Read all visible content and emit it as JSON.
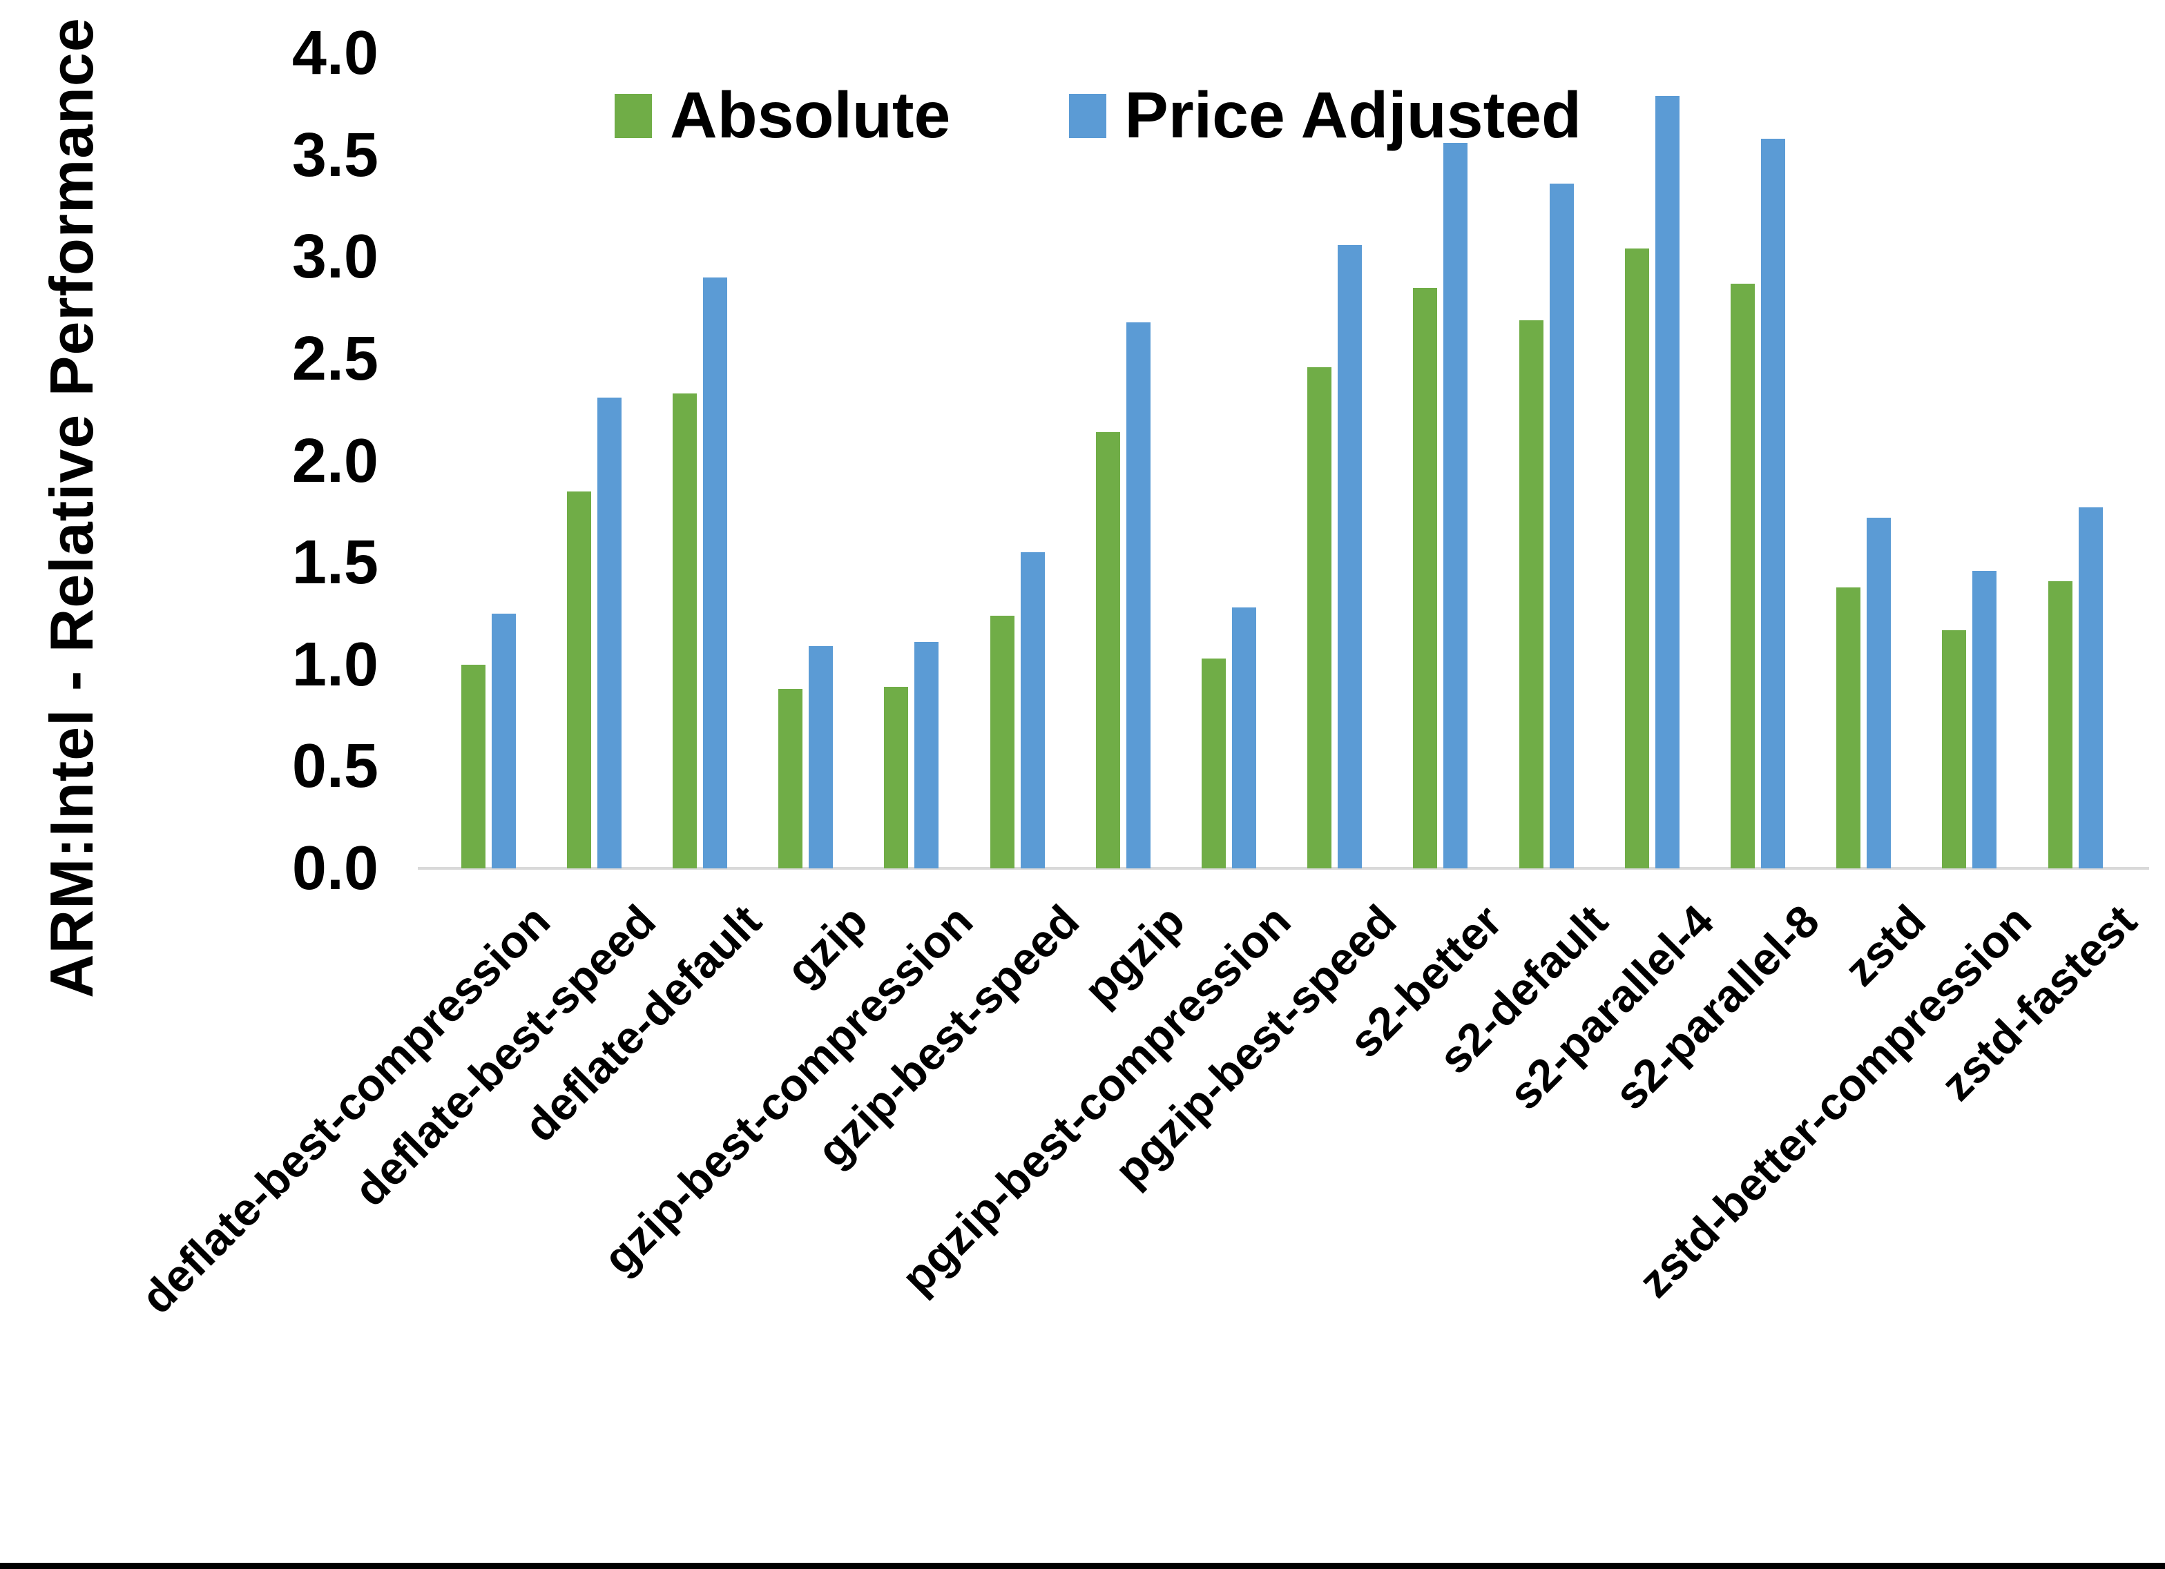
{
  "chart_data": {
    "type": "bar",
    "title": "",
    "xlabel": "",
    "ylabel": "ARM:Intel - Relative Performance",
    "ylim": [
      0.0,
      4.0
    ],
    "ytick_step": 0.5,
    "grid": false,
    "legend_position": "top-center",
    "categories": [
      "deflate-best-compression",
      "deflate-best-speed",
      "deflate-default",
      "gzip",
      "gzip-best-compression",
      "gzip-best-speed",
      "pgzip",
      "pgzip-best-compression",
      "pgzip-best-speed",
      "s2-better",
      "s2-default",
      "s2-parallel-4",
      "s2-parallel-8",
      "zstd",
      "zstd-better-compression",
      "zstd-fastest"
    ],
    "series": [
      {
        "name": "Absolute",
        "color": "#70AD47",
        "values": [
          1.0,
          1.85,
          2.33,
          0.88,
          0.89,
          1.24,
          2.14,
          1.03,
          2.46,
          2.85,
          2.69,
          3.04,
          2.87,
          1.38,
          1.17,
          1.41
        ]
      },
      {
        "name": "Price Adjusted",
        "color": "#5B9BD5",
        "values": [
          1.25,
          2.31,
          2.9,
          1.09,
          1.11,
          1.55,
          2.68,
          1.28,
          3.06,
          3.56,
          3.36,
          3.79,
          3.58,
          1.72,
          1.46,
          1.77
        ]
      }
    ]
  },
  "colors": {
    "background": "#ffffff",
    "axis_line": "#d9d9d9",
    "text": "#000000",
    "bottom_border": "#000000"
  }
}
